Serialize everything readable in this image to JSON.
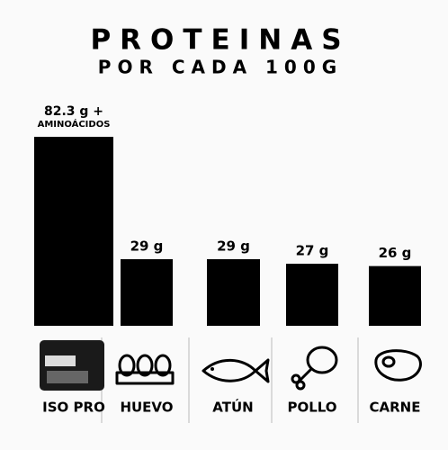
{
  "chart_data": {
    "type": "bar",
    "title": "PROTEINAS",
    "subtitle": "POR CADA 100G",
    "categories": [
      "ISO PRO",
      "HUEVO",
      "ATÚN",
      "POLLO",
      "CARNE"
    ],
    "values": [
      82.3,
      29,
      29,
      27,
      26
    ],
    "value_labels": [
      "82.3 g +",
      "29 g",
      "29 g",
      "27 g",
      "26 g"
    ],
    "annotations": [
      "AMINOÁCIDOS"
    ],
    "color": "#000000"
  }
}
